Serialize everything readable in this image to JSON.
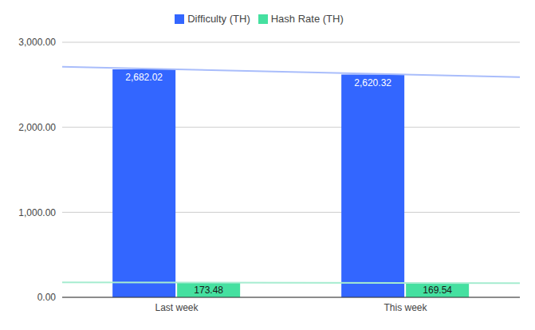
{
  "chart_data": {
    "type": "bar",
    "categories": [
      "Last week",
      "This week"
    ],
    "series": [
      {
        "name": "Difficulty (TH)",
        "color": "#3366ff",
        "values": [
          2682.02,
          2620.32
        ],
        "value_labels": [
          "2,682.02",
          "2,620.32"
        ]
      },
      {
        "name": "Hash Rate (TH)",
        "color": "#45e0a0",
        "values": [
          173.48,
          169.54
        ]
      }
    ],
    "ylim": [
      0,
      3000
    ],
    "yticks": [
      {
        "value": 0,
        "label": "0.00"
      },
      {
        "value": 1000,
        "label": "1,000.00"
      },
      {
        "value": 2000,
        "label": "2,000.00"
      },
      {
        "value": 3000,
        "label": "3,000.00"
      }
    ],
    "grid": true,
    "legend": "top",
    "data_labels": true
  }
}
